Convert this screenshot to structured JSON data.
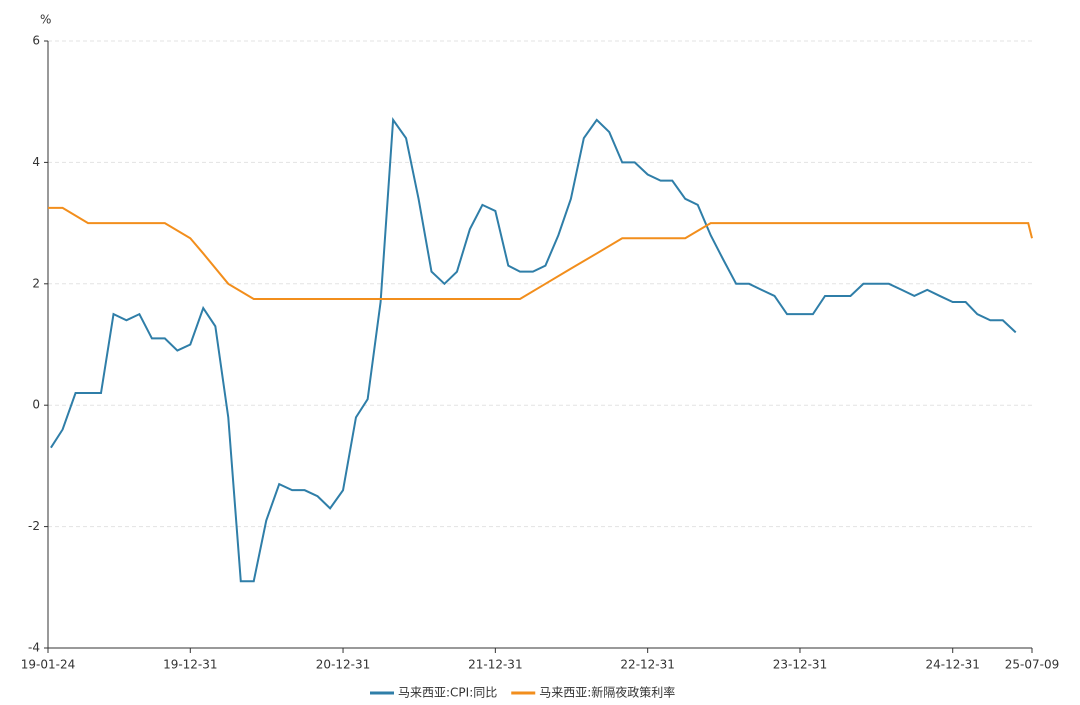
{
  "chart_data": {
    "type": "line",
    "y_unit": "%",
    "xlim": [
      "19-01-24",
      "25-07-09"
    ],
    "xticks": [
      "19-01-24",
      "19-12-31",
      "20-12-31",
      "21-12-31",
      "22-12-31",
      "23-12-31",
      "24-12-31",
      "25-07-09"
    ],
    "ylim": [
      -4,
      6
    ],
    "yticks": [
      -4,
      -2,
      0,
      2,
      4,
      6
    ],
    "grid": true,
    "legend": "bottom",
    "series": [
      {
        "name": "马来西亚:CPI:同比",
        "color": "#2f7ea8",
        "x": [
          "19-01-31",
          "19-02-28",
          "19-03-31",
          "19-04-30",
          "19-05-31",
          "19-06-30",
          "19-07-31",
          "19-08-31",
          "19-09-30",
          "19-10-31",
          "19-11-30",
          "19-12-31",
          "20-01-31",
          "20-02-29",
          "20-03-31",
          "20-04-30",
          "20-05-31",
          "20-06-30",
          "20-07-31",
          "20-08-31",
          "20-09-30",
          "20-10-31",
          "20-11-30",
          "20-12-31",
          "21-01-31",
          "21-02-28",
          "21-03-31",
          "21-04-30",
          "21-05-31",
          "21-06-30",
          "21-07-31",
          "21-08-31",
          "21-09-30",
          "21-10-31",
          "21-11-30",
          "21-12-31",
          "22-01-31",
          "22-02-28",
          "22-03-31",
          "22-04-30",
          "22-05-31",
          "22-06-30",
          "22-07-31",
          "22-08-31",
          "22-09-30",
          "22-10-31",
          "22-11-30",
          "22-12-31",
          "23-01-31",
          "23-02-28",
          "23-03-31",
          "23-04-30",
          "23-05-31",
          "23-06-30",
          "23-07-31",
          "23-08-31",
          "23-09-30",
          "23-10-31",
          "23-11-30",
          "23-12-31",
          "24-01-31",
          "24-02-29",
          "24-03-31",
          "24-04-30",
          "24-05-31",
          "24-06-30",
          "24-07-31",
          "24-08-31",
          "24-09-30",
          "24-10-31",
          "24-11-30",
          "24-12-31",
          "25-01-31",
          "25-02-28",
          "25-03-31",
          "25-04-30",
          "25-05-31"
        ],
        "values": [
          -0.7,
          -0.4,
          0.2,
          0.2,
          0.2,
          1.5,
          1.4,
          1.5,
          1.1,
          1.1,
          0.9,
          1.0,
          1.6,
          1.3,
          -0.2,
          -2.9,
          -2.9,
          -1.9,
          -1.3,
          -1.4,
          -1.4,
          -1.5,
          -1.7,
          -1.4,
          -0.2,
          0.1,
          1.7,
          4.7,
          4.4,
          3.4,
          2.2,
          2.0,
          2.2,
          2.9,
          3.3,
          3.2,
          2.3,
          2.2,
          2.2,
          2.3,
          2.8,
          3.4,
          4.4,
          4.7,
          4.5,
          4.0,
          4.0,
          3.8,
          3.7,
          3.7,
          3.4,
          3.3,
          2.8,
          2.4,
          2.0,
          2.0,
          1.9,
          1.8,
          1.5,
          1.5,
          1.5,
          1.8,
          1.8,
          1.8,
          2.0,
          2.0,
          2.0,
          1.9,
          1.8,
          1.9,
          1.8,
          1.7,
          1.7,
          1.5,
          1.4,
          1.4,
          1.2
        ]
      },
      {
        "name": "马来西亚:新隔夜政策利率",
        "color": "#f28e1c",
        "x": [
          "19-01-24",
          "19-02-28",
          "19-04-30",
          "19-10-31",
          "19-12-31",
          "20-01-31",
          "20-03-31",
          "20-05-31",
          "22-02-28",
          "22-04-30",
          "22-06-30",
          "22-08-31",
          "22-10-31",
          "23-03-31",
          "23-05-31",
          "25-06-30",
          "25-07-09"
        ],
        "values": [
          3.25,
          3.25,
          3.0,
          3.0,
          2.75,
          2.5,
          2.0,
          1.75,
          1.75,
          2.0,
          2.25,
          2.5,
          2.75,
          2.75,
          3.0,
          3.0,
          2.75
        ]
      }
    ]
  }
}
